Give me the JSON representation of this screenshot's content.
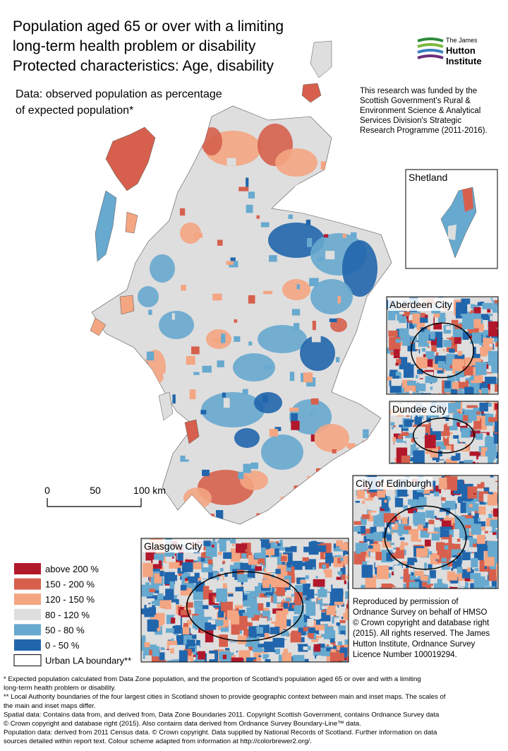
{
  "title": {
    "lines": [
      "Population aged 65 or over with a limiting",
      "long-term health problem or disability",
      "Protected characteristics: Age, disability"
    ]
  },
  "subtitle": {
    "lines": [
      "Data: observed population as percentage",
      "of expected population*"
    ]
  },
  "logo": {
    "lines": [
      "The James",
      "Hutton",
      "Institute"
    ]
  },
  "funding": {
    "lines": [
      "This research was funded by the",
      "Scottish Government's Rural &",
      "Environment Science & Analytical",
      "Services Division's Strategic",
      "Research Programme (2011-2016)."
    ]
  },
  "insets": [
    "Shetland",
    "Aberdeen City",
    "Dundee City",
    "City of Edinburgh",
    "Glasgow City"
  ],
  "scale_bar": {
    "labels": [
      "0",
      "50",
      "100 km"
    ]
  },
  "legend": {
    "items": [
      {
        "label": "above 200 %",
        "color": "#b2182b"
      },
      {
        "label": "150 - 200 %",
        "color": "#d6604d"
      },
      {
        "label": "120 - 150 %",
        "color": "#f4a582"
      },
      {
        "label": "80 - 120 %",
        "color": "#dedede"
      },
      {
        "label": "50 - 80 %",
        "color": "#67a9cf"
      },
      {
        "label": "0 - 50 %",
        "color": "#2166ac"
      },
      {
        "label": "Urban LA boundary**",
        "color": "#ffffff"
      }
    ]
  },
  "reproduced": {
    "lines": [
      "Reproduced by permission of",
      "Ordnance Survey on behalf of HMSO",
      "© Crown copyright and database right",
      "(2015). All rights reserved. The James",
      "Hutton Institute, Ordnance Survey",
      "Licence Number 100019294."
    ]
  },
  "footnotes": {
    "lines": [
      "* Expected population calculated from Data Zone population, and the proportion of Scotland's population aged 65 or over and with a limiting",
      "long-term health problem or disability.",
      "** Local Authority boundaries of the four largest cities in Scotland shown to provide geographic context between main and inset maps. The scales of",
      "the main and inset maps differ.",
      "Spatial data: Contains data from, and derived from, Data Zone Boundaries 2011. Copyright Scottish Government, contains Ordnance Survey data",
      "© Crown copyright and database right (2015). Also contains data derived from Ordnance Survey Boundary-Line™ data.",
      "Population data: derived from 2011 Census data. © Crown copyright. Data supplied by National Records of Scotland. Further information on data",
      "sources detailed within report text. Colour scheme adapted from information at http://colorbrewer2.org/."
    ]
  }
}
